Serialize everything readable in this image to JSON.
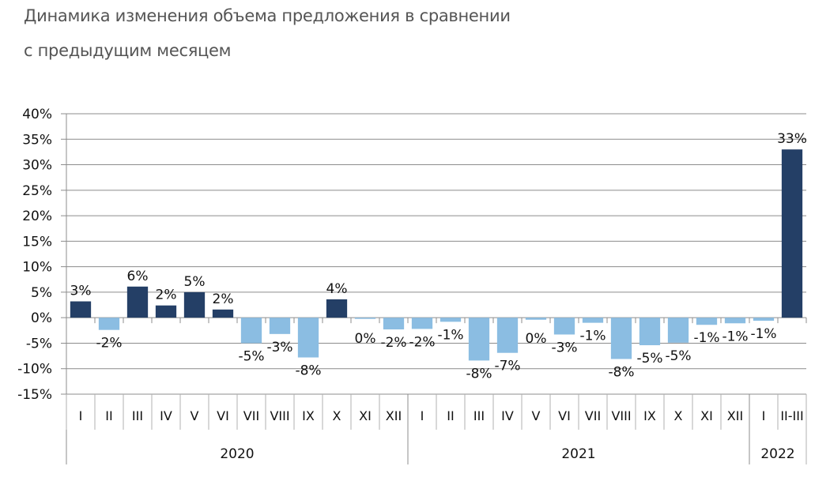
{
  "chart_data": {
    "type": "bar",
    "title_line1": "Динамика изменения объема предложения в сравнении",
    "title_line2": "с предыдущим месяцем",
    "xlabel": "",
    "ylabel": "",
    "ylim": [
      -0.15,
      0.4
    ],
    "yticks": [
      0.4,
      0.35,
      0.3,
      0.25,
      0.2,
      0.15,
      0.1,
      0.05,
      0.0,
      -0.05,
      -0.1,
      -0.15
    ],
    "ytick_labels": [
      "40%",
      "35%",
      "30%",
      "25%",
      "20%",
      "15%",
      "10%",
      "5%",
      "0%",
      "-5%",
      "-10%",
      "-15%"
    ],
    "grid": true,
    "legend": "none",
    "colors": {
      "positive": "#243f66",
      "negative": "#8bbde2",
      "grid": "#8c8c8c",
      "axis": "#8c8c8c"
    },
    "groups": [
      {
        "label": "2020",
        "count": 12
      },
      {
        "label": "2021",
        "count": 12
      },
      {
        "label": "2022",
        "count": 2
      }
    ],
    "categories": [
      "I",
      "II",
      "III",
      "IV",
      "V",
      "VI",
      "VII",
      "VIII",
      "IX",
      "X",
      "XI",
      "XII",
      "I",
      "II",
      "III",
      "IV",
      "V",
      "VI",
      "VII",
      "VIII",
      "IX",
      "X",
      "XI",
      "XII",
      "I",
      "II-III"
    ],
    "values": [
      0.032,
      -0.024,
      0.061,
      0.024,
      0.05,
      0.016,
      -0.05,
      -0.032,
      -0.078,
      0.036,
      -0.002,
      -0.023,
      -0.022,
      -0.008,
      -0.084,
      -0.069,
      -0.004,
      -0.033,
      -0.01,
      -0.081,
      -0.054,
      -0.049,
      -0.014,
      -0.011,
      -0.006,
      0.33
    ],
    "data_labels": [
      "3%",
      "-2%",
      "6%",
      "2%",
      "5%",
      "2%",
      "-5%",
      "-3%",
      "-8%",
      "4%",
      "0%",
      "-2%",
      "-2%",
      "-1%",
      "-8%",
      "-7%",
      "0%",
      "-3%",
      "-1%",
      "-8%",
      "-5%",
      "-5%",
      "-1%",
      "-1%",
      "-1%",
      "33%"
    ]
  }
}
